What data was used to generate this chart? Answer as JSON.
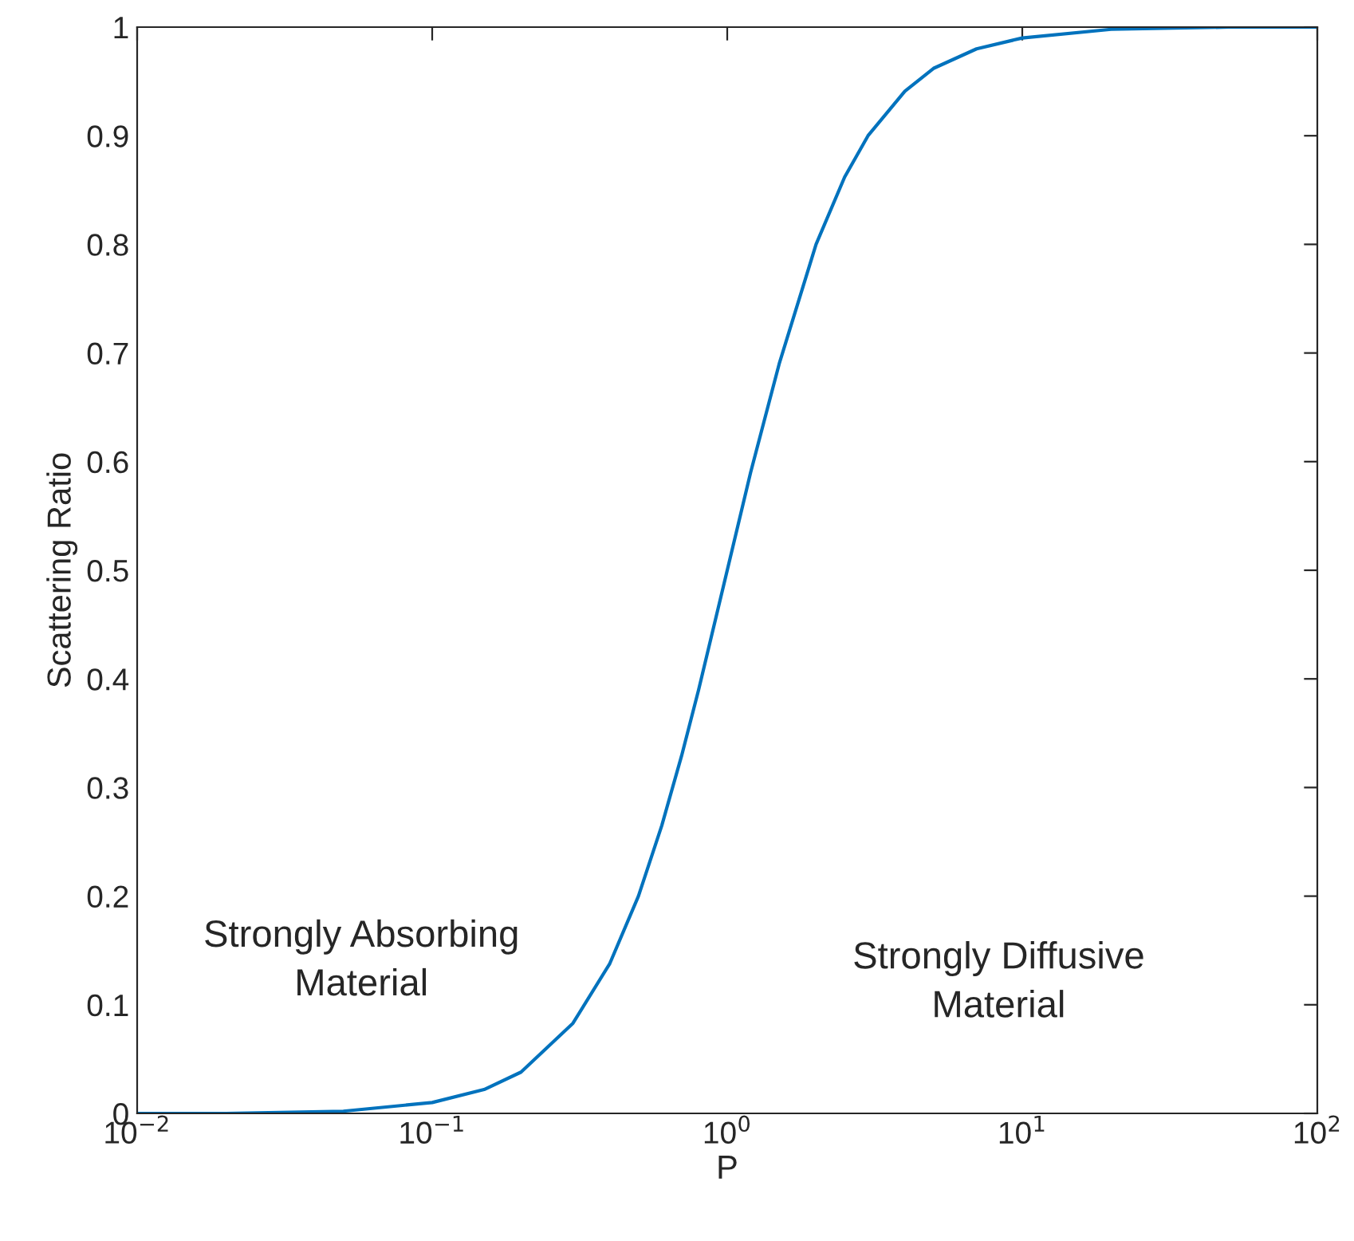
{
  "chart_data": {
    "type": "line",
    "xlabel": "P",
    "ylabel": "Scattering Ratio",
    "log": "x",
    "x": [
      0.01,
      0.02,
      0.05,
      0.1,
      0.15,
      0.2,
      0.3,
      0.4,
      0.5,
      0.6,
      0.7,
      0.8,
      0.9,
      1,
      1.2,
      1.5,
      2,
      2.5,
      3,
      4,
      5,
      7,
      10,
      20,
      50,
      100
    ],
    "series": [
      {
        "color": "#0072bd",
        "values": [
          0,
          0,
          0.002,
          0.01,
          0.022,
          0.038,
          0.083,
          0.138,
          0.2,
          0.265,
          0.329,
          0.39,
          0.448,
          0.5,
          0.59,
          0.69,
          0.8,
          0.862,
          0.9,
          0.941,
          0.962,
          0.98,
          0.99,
          0.998,
          1,
          1
        ]
      }
    ],
    "xlim": [
      0.01,
      100
    ],
    "xticks": [
      {
        "value": 0.01,
        "label": "10$^{−2}$"
      },
      {
        "value": 0.1,
        "label": "10$^{−1}$"
      },
      {
        "value": 1,
        "label": "10$^{0}$"
      },
      {
        "value": 10,
        "label": "10$^{1}$"
      },
      {
        "value": 100,
        "label": "10$^{2}$"
      }
    ],
    "ylim": [
      0,
      1
    ],
    "yticks": [
      0,
      0.1,
      0.2,
      0.3,
      0.4,
      0.5,
      0.6,
      0.7,
      0.8,
      0.9,
      1
    ],
    "grid": false,
    "legend": false,
    "marker": "none",
    "line_style": "solid",
    "annotations": [
      "Strongly Absorbing\nMaterial",
      "Strongly Diffusive\nMaterial"
    ]
  }
}
